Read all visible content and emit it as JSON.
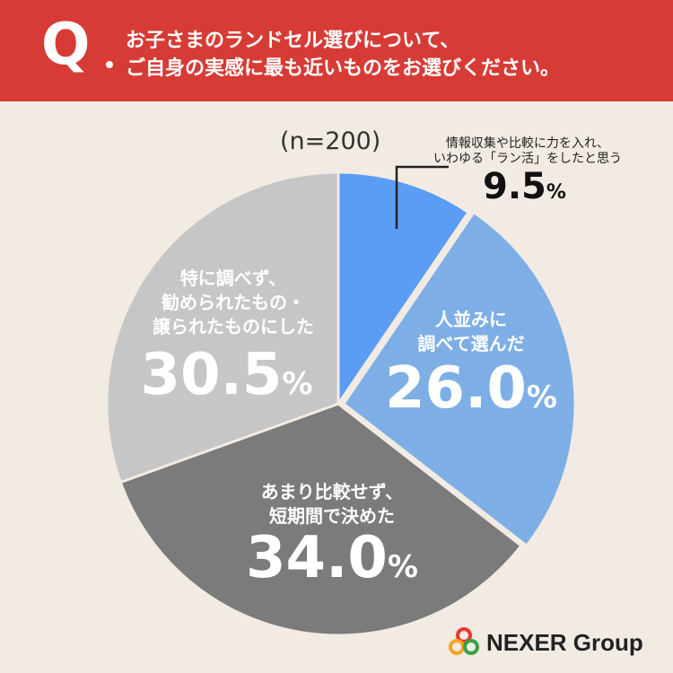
{
  "header": {
    "q_mark": "Q",
    "question_line1": "お子さまのランドセル選びについて、",
    "question_line2": "ご自身の実感に最も近いものをお選びください。"
  },
  "sample_size": "(n=200)",
  "chart_data": {
    "type": "pie",
    "slices": [
      {
        "label_lines": [
          "情報収集や比較に力を入れ、",
          "いわゆる「ラン活」をしたと思う"
        ],
        "value": 9.5,
        "color": "#5b9cf5"
      },
      {
        "label_lines": [
          "人並みに",
          "調べて選んだ"
        ],
        "value": 26.0,
        "color": "#7eaee6"
      },
      {
        "label_lines": [
          "あまり比較せず、",
          "短期間で決めた"
        ],
        "value": 34.0,
        "color": "#7b7b7b"
      },
      {
        "label_lines": [
          "特に調べず、",
          "勧められたもの・",
          "譲られたものにした"
        ],
        "value": 30.5,
        "color": "#c6c6c6"
      }
    ],
    "value_texts": [
      "9.5",
      "26.0",
      "34.0",
      "30.5"
    ],
    "unit": "%"
  },
  "logo": {
    "text": "NEXER Group",
    "colors": [
      "#e8382f",
      "#f5a623",
      "#3aa047"
    ]
  }
}
